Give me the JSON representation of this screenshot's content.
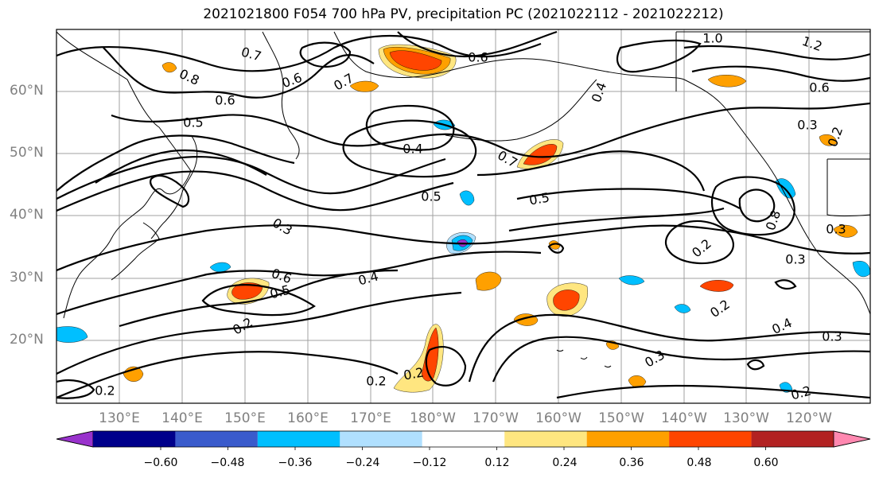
{
  "title": "2021021800 F054 700 hPa PV, precipitation PC (2021022112 - 2021022212)",
  "map": {
    "projection": "equirectangular (North Pacific)",
    "lat_labels": [
      "60°N",
      "50°N",
      "40°N",
      "30°N",
      "20°N"
    ],
    "lon_labels": [
      "130°E",
      "140°E",
      "150°E",
      "160°E",
      "170°E",
      "180°W",
      "170°W",
      "160°W",
      "150°W",
      "140°W",
      "130°W",
      "120°W"
    ],
    "gridlines": true,
    "coastlines": true,
    "contour_labels": [
      "0.7",
      "0.8",
      "0.6",
      "0.5",
      "0.7",
      "0.6",
      "1.0",
      "1.2",
      "0.6",
      "0.3",
      "0.2",
      "0.4",
      "0.5",
      "0.7",
      "0.5",
      "0.3",
      "0.3",
      "0.2",
      "0.3",
      "0.6",
      "0.5",
      "0.4",
      "0.2",
      "0.2",
      "0.2",
      "0.4",
      "0.3",
      "0.2",
      "0.3",
      "0.8",
      "0.6",
      "0.4",
      "0.2",
      "0.2"
    ]
  },
  "colorbar": {
    "ticks": [
      "−0.60",
      "−0.48",
      "−0.36",
      "−0.24",
      "−0.12",
      "0.12",
      "0.24",
      "0.36",
      "0.48",
      "0.60"
    ],
    "colors": [
      "#9932cc",
      "#00008b",
      "#3a5bcc",
      "#00bfff",
      "#b0e0ff",
      "#ffffff",
      "#ffe680",
      "#ffa000",
      "#ff4500",
      "#b22222",
      "#ff88b0"
    ],
    "extend": "both"
  }
}
